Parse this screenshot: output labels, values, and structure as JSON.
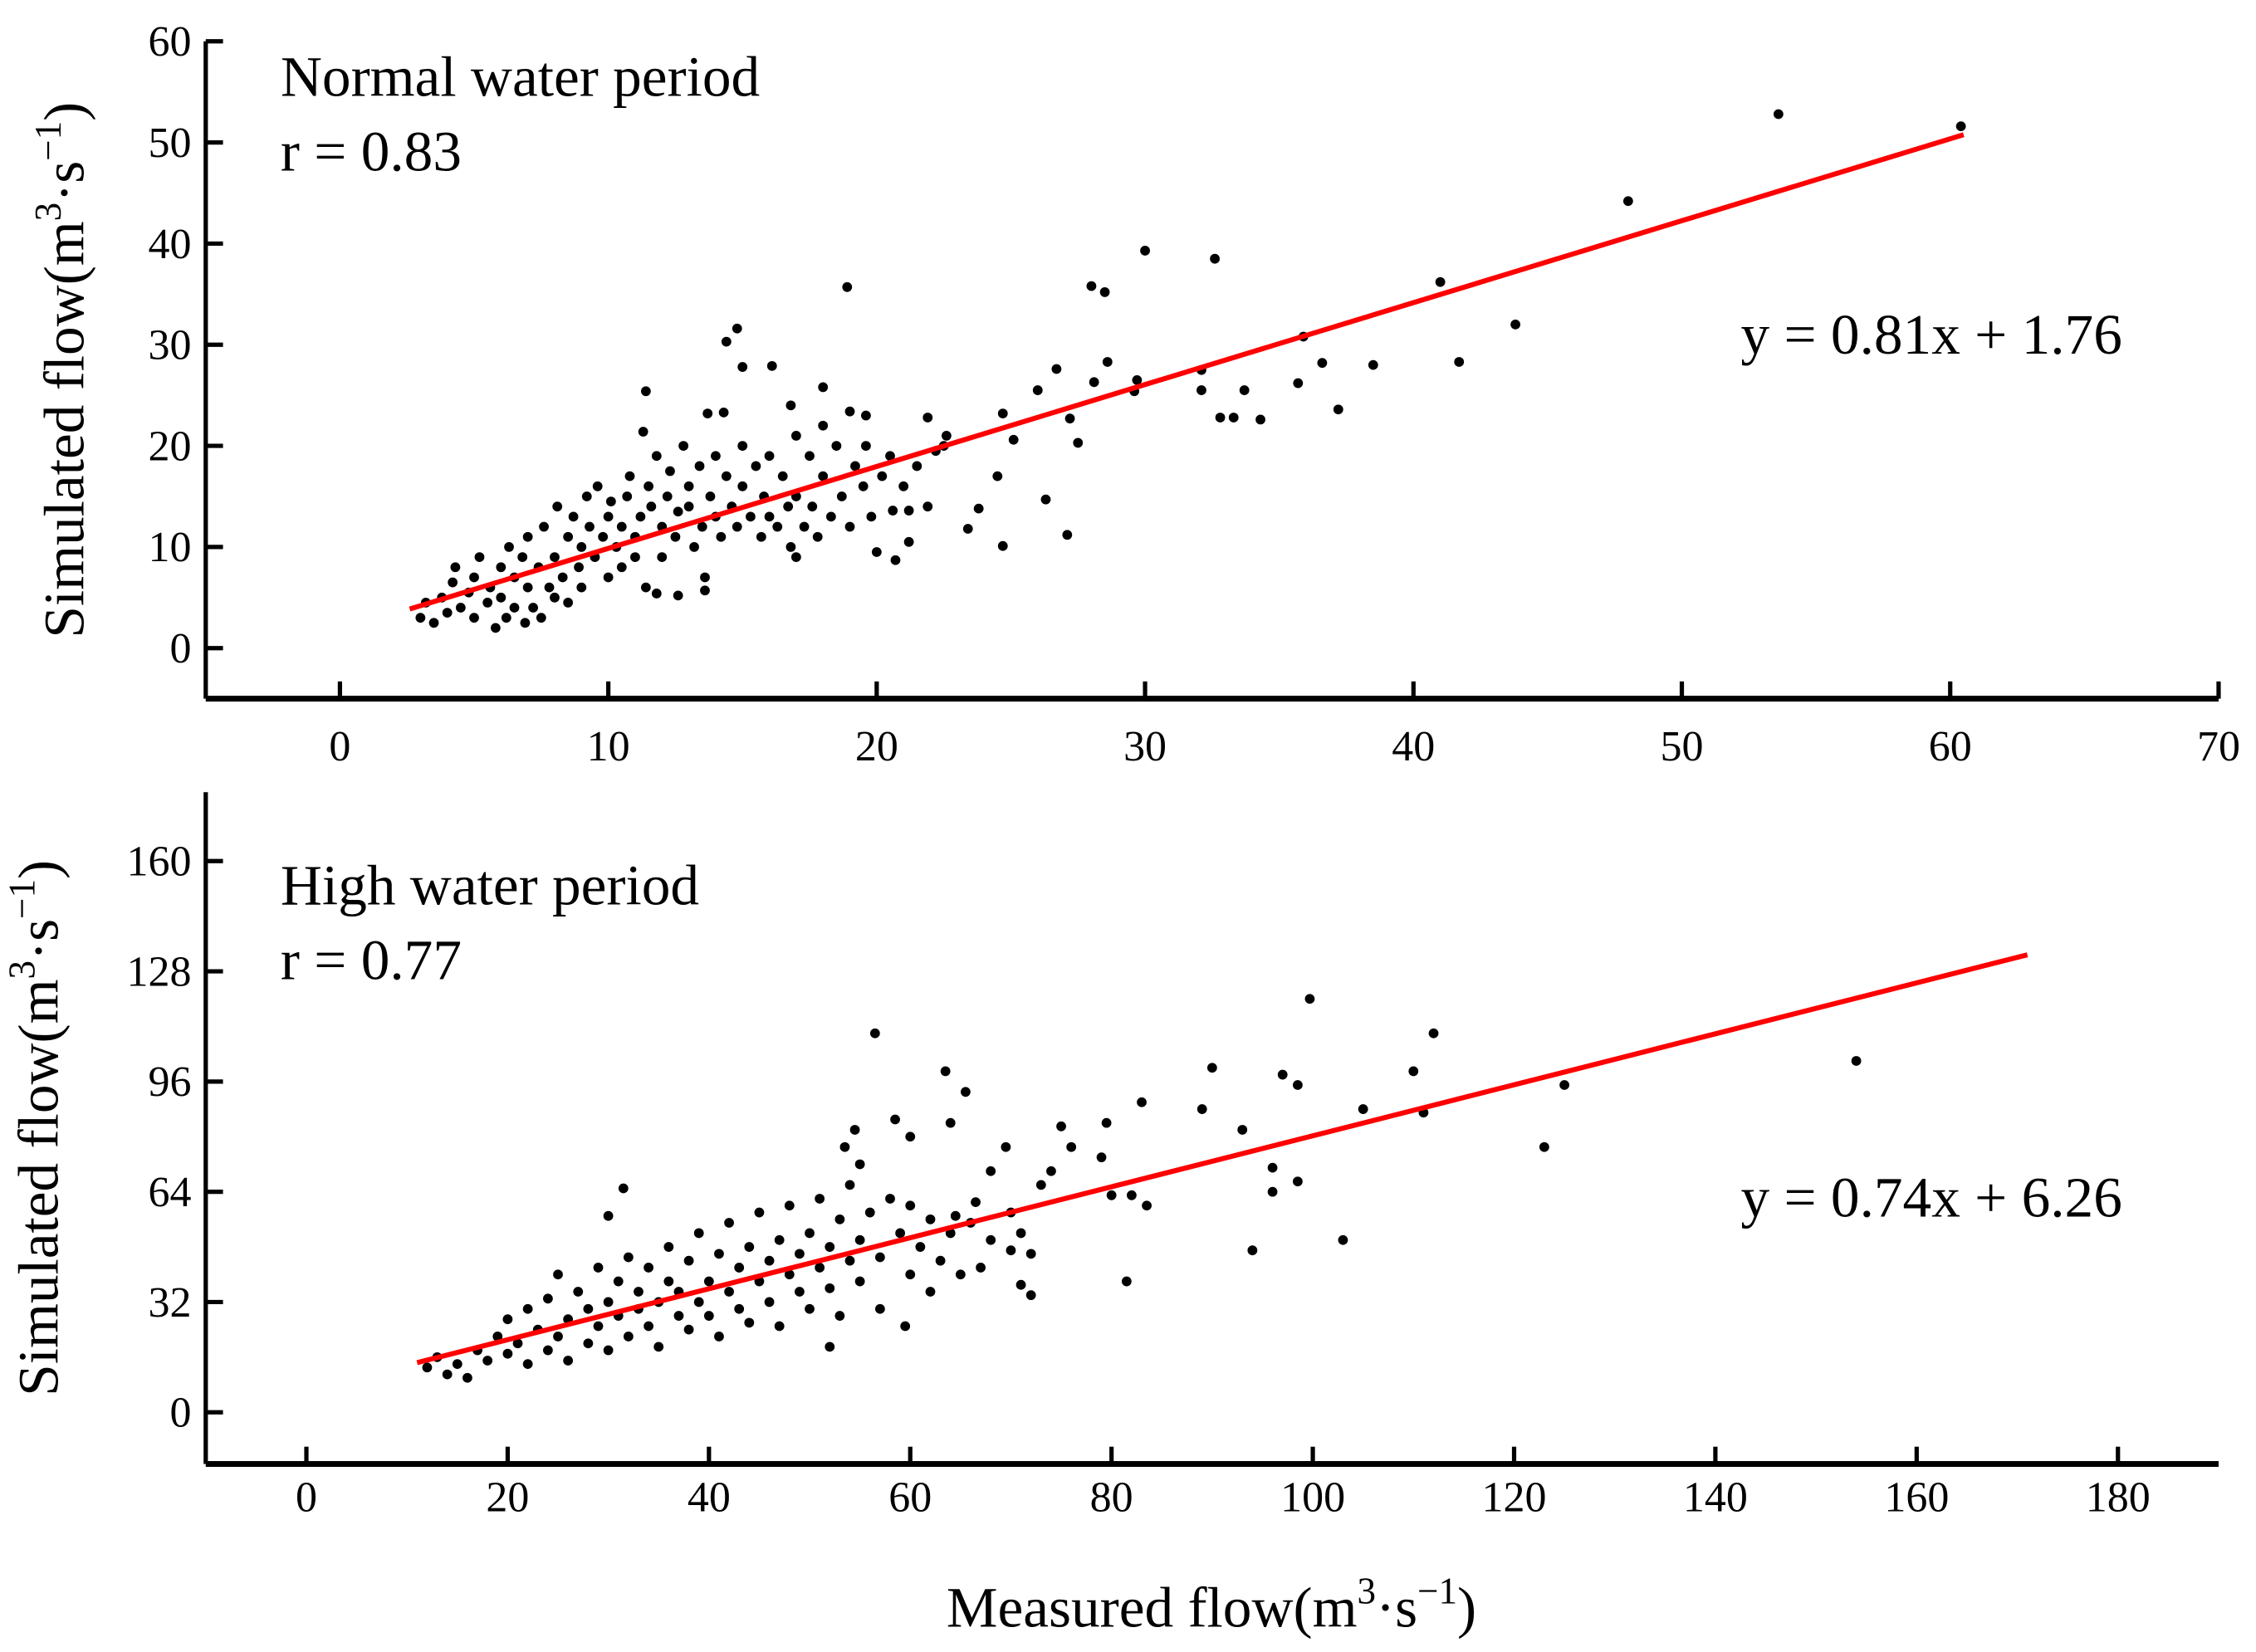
{
  "chart_data": [
    {
      "type": "scatter",
      "title": "Normal water period",
      "r_label": "r = 0.83",
      "equation": "y = 0.81x + 1.76",
      "fit": {
        "slope": 0.81,
        "intercept": 1.76,
        "xrange": [
          2.6,
          60.5
        ]
      },
      "xlim": [
        -5,
        70
      ],
      "ylim": [
        -5,
        60
      ],
      "xticks": [
        "0",
        "10",
        "20",
        "30",
        "40",
        "50",
        "60",
        "70"
      ],
      "yticks": [
        "0",
        "10",
        "20",
        "30",
        "40",
        "50",
        "60"
      ],
      "ylabel": {
        "base": "Simulated flow(m",
        "sup1": "3",
        "mid": "·s",
        "sup2": "−1",
        "end": ")"
      },
      "grid": false,
      "point_color": "#000000",
      "line_color": "#ff0000",
      "points": [
        [
          53.6,
          52.8
        ],
        [
          60.4,
          51.6
        ],
        [
          48,
          44.2
        ],
        [
          41,
          36.2
        ],
        [
          43.8,
          32
        ],
        [
          41.7,
          28.3
        ],
        [
          38.5,
          28
        ],
        [
          36.6,
          28.2
        ],
        [
          35.9,
          30.8
        ],
        [
          35.7,
          26.2
        ],
        [
          37.2,
          23.6
        ],
        [
          34.3,
          22.6
        ],
        [
          33.7,
          25.5
        ],
        [
          33.3,
          22.8
        ],
        [
          32.8,
          22.8
        ],
        [
          32.1,
          27.5
        ],
        [
          32.1,
          25.5
        ],
        [
          32.6,
          38.5
        ],
        [
          30,
          39.3
        ],
        [
          28,
          35.8
        ],
        [
          28.5,
          35.2
        ],
        [
          28.6,
          28.3
        ],
        [
          28.1,
          26.3
        ],
        [
          29.7,
          26.5
        ],
        [
          29.6,
          25.4
        ],
        [
          26.7,
          27.6
        ],
        [
          26,
          25.5
        ],
        [
          27.2,
          22.7
        ],
        [
          27.5,
          20.3
        ],
        [
          26.3,
          14.7
        ],
        [
          27.1,
          11.2
        ],
        [
          24.7,
          23.2
        ],
        [
          24.5,
          17
        ],
        [
          24.7,
          10.1
        ],
        [
          23.4,
          11.8
        ],
        [
          23.8,
          13.8
        ],
        [
          25.1,
          20.6
        ],
        [
          22.6,
          21
        ],
        [
          22.2,
          19.5
        ],
        [
          21.9,
          22.8
        ],
        [
          21.9,
          14
        ],
        [
          21.2,
          13.6
        ],
        [
          21.2,
          10.5
        ],
        [
          20.7,
          8.7
        ],
        [
          20.6,
          13.6
        ],
        [
          20,
          9.5
        ],
        [
          19.6,
          20
        ],
        [
          19,
          23.4
        ],
        [
          19.6,
          23
        ],
        [
          18.9,
          35.7
        ],
        [
          18,
          25.8
        ],
        [
          16.8,
          24
        ],
        [
          16.1,
          27.9
        ],
        [
          15,
          27.8
        ],
        [
          14.8,
          31.6
        ],
        [
          14.4,
          30.3
        ],
        [
          11.4,
          25.4
        ],
        [
          11.3,
          21.4
        ],
        [
          13.7,
          23.2
        ],
        [
          14.3,
          23.3
        ],
        [
          17,
          9
        ],
        [
          13.6,
          5.7
        ],
        [
          12.6,
          5.2
        ],
        [
          11.8,
          5.4
        ],
        [
          3,
          3
        ],
        [
          3.2,
          4.5
        ],
        [
          3.5,
          2.5
        ],
        [
          3.8,
          5
        ],
        [
          4,
          3.5
        ],
        [
          4.2,
          6.5
        ],
        [
          4.3,
          8
        ],
        [
          4.5,
          4
        ],
        [
          4.8,
          5.5
        ],
        [
          5,
          7
        ],
        [
          5,
          3
        ],
        [
          5.2,
          9
        ],
        [
          5.5,
          4.5
        ],
        [
          5.6,
          6
        ],
        [
          5.8,
          2
        ],
        [
          6,
          8
        ],
        [
          6,
          5
        ],
        [
          6.2,
          3
        ],
        [
          6.3,
          10
        ],
        [
          6.5,
          7
        ],
        [
          6.5,
          4
        ],
        [
          6.8,
          9
        ],
        [
          6.9,
          2.5
        ],
        [
          7,
          6
        ],
        [
          7,
          11
        ],
        [
          7.2,
          4
        ],
        [
          7.4,
          8
        ],
        [
          7.5,
          3
        ],
        [
          7.6,
          12
        ],
        [
          7.8,
          6
        ],
        [
          8,
          9
        ],
        [
          8,
          5
        ],
        [
          8.1,
          14
        ],
        [
          8.3,
          7
        ],
        [
          8.5,
          11
        ],
        [
          8.5,
          4.5
        ],
        [
          8.7,
          13
        ],
        [
          8.9,
          8
        ],
        [
          9,
          10
        ],
        [
          9,
          6
        ],
        [
          9.2,
          15
        ],
        [
          9.3,
          12
        ],
        [
          9.5,
          9
        ],
        [
          9.6,
          16
        ],
        [
          9.8,
          11
        ],
        [
          10,
          7
        ],
        [
          10,
          13
        ],
        [
          10.1,
          14.5
        ],
        [
          10.3,
          10
        ],
        [
          10.5,
          12
        ],
        [
          10.5,
          8
        ],
        [
          10.7,
          15
        ],
        [
          10.8,
          17
        ],
        [
          11,
          11
        ],
        [
          11,
          9
        ],
        [
          11.2,
          13
        ],
        [
          11.4,
          6
        ],
        [
          11.5,
          16
        ],
        [
          11.6,
          14
        ],
        [
          11.8,
          19
        ],
        [
          12,
          12
        ],
        [
          12,
          9
        ],
        [
          12.2,
          15
        ],
        [
          12.3,
          17.5
        ],
        [
          12.5,
          11
        ],
        [
          12.6,
          13.5
        ],
        [
          12.8,
          20
        ],
        [
          13,
          14
        ],
        [
          13,
          16
        ],
        [
          13.2,
          10
        ],
        [
          13.4,
          18
        ],
        [
          13.5,
          12
        ],
        [
          13.6,
          7
        ],
        [
          13.8,
          15
        ],
        [
          14,
          13
        ],
        [
          14,
          19
        ],
        [
          14.2,
          11
        ],
        [
          14.4,
          17
        ],
        [
          14.6,
          14
        ],
        [
          14.8,
          12
        ],
        [
          15,
          16
        ],
        [
          15,
          20
        ],
        [
          15.3,
          13
        ],
        [
          15.5,
          18
        ],
        [
          15.7,
          11
        ],
        [
          15.8,
          15
        ],
        [
          16,
          13
        ],
        [
          16,
          19
        ],
        [
          16.3,
          12
        ],
        [
          16.5,
          17
        ],
        [
          16.7,
          14
        ],
        [
          16.8,
          10
        ],
        [
          17,
          21
        ],
        [
          17,
          15
        ],
        [
          17.3,
          12
        ],
        [
          17.5,
          19
        ],
        [
          17.6,
          14
        ],
        [
          17.8,
          11
        ],
        [
          18,
          17
        ],
        [
          18,
          22
        ],
        [
          18.3,
          13
        ],
        [
          18.5,
          20
        ],
        [
          18.7,
          15
        ],
        [
          19,
          12
        ],
        [
          19.2,
          18
        ],
        [
          19.5,
          16
        ],
        [
          19.8,
          13
        ],
        [
          20.2,
          17
        ],
        [
          20.5,
          19
        ],
        [
          21,
          16
        ],
        [
          21.5,
          18
        ],
        [
          22.5,
          20
        ]
      ]
    },
    {
      "type": "scatter",
      "title": "High water period",
      "r_label": "r = 0.77",
      "equation": "y = 0.74x + 6.26",
      "fit": {
        "slope": 0.74,
        "intercept": 6.26,
        "xrange": [
          11,
          171
        ]
      },
      "xlim": [
        -10,
        190
      ],
      "ylim": [
        -15,
        180
      ],
      "xticks": [
        "0",
        "20",
        "40",
        "60",
        "80",
        "100",
        "120",
        "140",
        "160",
        "180"
      ],
      "yticks": [
        "0",
        "32",
        "64",
        "96",
        "128",
        "160"
      ],
      "ylabel": {
        "base": "Simulated flow(m",
        "sup1": "3",
        "mid": "·s",
        "sup2": "−1",
        "end": ")"
      },
      "xlabel": {
        "base": "Measured flow(m",
        "sup1": "3",
        "mid": "·s",
        "sup2": "−1",
        "end": ")"
      },
      "grid": false,
      "point_color": "#000000",
      "line_color": "#ff0000",
      "points": [
        [
          154,
          102
        ],
        [
          112,
          110
        ],
        [
          110,
          99
        ],
        [
          111,
          87
        ],
        [
          105,
          88
        ],
        [
          99.7,
          120
        ],
        [
          125,
          95
        ],
        [
          123,
          77
        ],
        [
          103,
          50
        ],
        [
          98.5,
          67
        ],
        [
          96,
          71
        ],
        [
          96,
          64
        ],
        [
          94,
          47
        ],
        [
          97,
          98
        ],
        [
          98.5,
          95
        ],
        [
          90,
          100
        ],
        [
          89,
          88
        ],
        [
          93,
          82
        ],
        [
          83,
          90
        ],
        [
          79.5,
          84
        ],
        [
          79,
          74
        ],
        [
          80,
          63
        ],
        [
          82,
          63
        ],
        [
          83.5,
          60
        ],
        [
          81.5,
          38
        ],
        [
          75,
          83
        ],
        [
          76,
          77
        ],
        [
          74,
          70
        ],
        [
          73,
          66
        ],
        [
          69.5,
          77
        ],
        [
          68,
          70
        ],
        [
          72,
          46
        ],
        [
          70,
          47
        ],
        [
          71,
          37
        ],
        [
          72,
          34
        ],
        [
          63.5,
          99
        ],
        [
          65.5,
          93
        ],
        [
          64,
          84
        ],
        [
          58.5,
          85
        ],
        [
          60,
          80
        ],
        [
          56.5,
          110
        ],
        [
          54.5,
          82
        ],
        [
          53.5,
          77
        ],
        [
          55,
          72
        ],
        [
          59.5,
          25
        ],
        [
          52,
          19
        ],
        [
          66.5,
          61
        ],
        [
          64.5,
          57
        ],
        [
          31.5,
          65
        ],
        [
          30,
          57
        ],
        [
          12,
          13
        ],
        [
          13,
          16
        ],
        [
          14,
          11
        ],
        [
          15,
          14
        ],
        [
          16,
          10
        ],
        [
          17,
          18
        ],
        [
          18,
          15
        ],
        [
          19,
          22
        ],
        [
          20,
          17
        ],
        [
          20,
          27
        ],
        [
          21,
          20
        ],
        [
          22,
          14
        ],
        [
          22,
          30
        ],
        [
          23,
          24
        ],
        [
          24,
          18
        ],
        [
          24,
          33
        ],
        [
          25,
          22
        ],
        [
          25,
          40
        ],
        [
          26,
          27
        ],
        [
          26,
          15
        ],
        [
          27,
          35
        ],
        [
          28,
          20
        ],
        [
          28,
          30
        ],
        [
          29,
          25
        ],
        [
          29,
          42
        ],
        [
          30,
          32
        ],
        [
          30,
          18
        ],
        [
          31,
          28
        ],
        [
          31,
          38
        ],
        [
          32,
          22
        ],
        [
          32,
          45
        ],
        [
          33,
          30
        ],
        [
          33,
          35
        ],
        [
          34,
          25
        ],
        [
          34,
          42
        ],
        [
          35,
          32
        ],
        [
          35,
          19
        ],
        [
          36,
          38
        ],
        [
          36,
          48
        ],
        [
          37,
          28
        ],
        [
          37,
          35
        ],
        [
          38,
          44
        ],
        [
          38,
          24
        ],
        [
          39,
          32
        ],
        [
          39,
          52
        ],
        [
          40,
          38
        ],
        [
          40,
          28
        ],
        [
          41,
          46
        ],
        [
          41,
          22
        ],
        [
          42,
          35
        ],
        [
          42,
          55
        ],
        [
          43,
          30
        ],
        [
          43,
          42
        ],
        [
          44,
          48
        ],
        [
          44,
          26
        ],
        [
          45,
          38
        ],
        [
          45,
          58
        ],
        [
          46,
          44
        ],
        [
          46,
          32
        ],
        [
          47,
          50
        ],
        [
          47,
          25
        ],
        [
          48,
          40
        ],
        [
          48,
          60
        ],
        [
          49,
          35
        ],
        [
          49,
          46
        ],
        [
          50,
          52
        ],
        [
          50,
          30
        ],
        [
          51,
          42
        ],
        [
          51,
          62
        ],
        [
          52,
          48
        ],
        [
          52,
          36
        ],
        [
          53,
          56
        ],
        [
          53,
          28
        ],
        [
          54,
          44
        ],
        [
          54,
          66
        ],
        [
          55,
          50
        ],
        [
          55,
          38
        ],
        [
          56,
          58
        ],
        [
          57,
          45
        ],
        [
          57,
          30
        ],
        [
          58,
          62
        ],
        [
          59,
          52
        ],
        [
          60,
          40
        ],
        [
          60,
          60
        ],
        [
          61,
          48
        ],
        [
          62,
          56
        ],
        [
          62,
          35
        ],
        [
          63,
          44
        ],
        [
          64,
          52
        ],
        [
          65,
          40
        ],
        [
          66,
          55
        ],
        [
          67,
          42
        ],
        [
          68,
          50
        ],
        [
          70,
          58
        ],
        [
          71,
          52
        ]
      ]
    }
  ]
}
